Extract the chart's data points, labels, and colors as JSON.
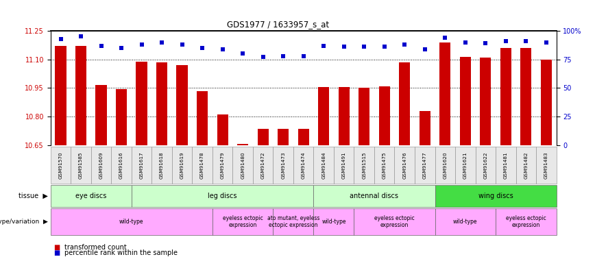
{
  "title": "GDS1977 / 1633957_s_at",
  "samples": [
    "GSM91570",
    "GSM91585",
    "GSM91609",
    "GSM91616",
    "GSM91617",
    "GSM91618",
    "GSM91619",
    "GSM91478",
    "GSM91479",
    "GSM91480",
    "GSM91472",
    "GSM91473",
    "GSM91474",
    "GSM91484",
    "GSM91491",
    "GSM91515",
    "GSM91475",
    "GSM91476",
    "GSM91477",
    "GSM91620",
    "GSM91621",
    "GSM91622",
    "GSM91481",
    "GSM91482",
    "GSM91483"
  ],
  "bar_values": [
    11.17,
    11.17,
    10.965,
    10.945,
    11.09,
    11.085,
    11.07,
    10.935,
    10.81,
    10.655,
    10.735,
    10.735,
    10.735,
    10.955,
    10.955,
    10.95,
    10.96,
    11.085,
    10.83,
    11.19,
    11.115,
    11.11,
    11.16,
    11.16,
    11.1
  ],
  "percentile_values": [
    93,
    95,
    87,
    85,
    88,
    90,
    88,
    85,
    84,
    80,
    77,
    78,
    78,
    87,
    86,
    86,
    86,
    88,
    84,
    94,
    90,
    89,
    91,
    91,
    90
  ],
  "bar_color": "#cc0000",
  "percentile_color": "#0000cc",
  "ylim_left": [
    10.65,
    11.25
  ],
  "ylim_right": [
    0,
    100
  ],
  "yticks_left": [
    10.65,
    10.8,
    10.95,
    11.1,
    11.25
  ],
  "yticks_right": [
    0,
    25,
    50,
    75,
    100
  ],
  "ytick_labels_right": [
    "0",
    "25",
    "50",
    "75",
    "100%"
  ],
  "hlines": [
    10.8,
    10.95,
    11.1
  ],
  "tissue_groups": [
    {
      "label": "eye discs",
      "start": 0,
      "end": 3,
      "color": "#ccffcc"
    },
    {
      "label": "leg discs",
      "start": 4,
      "end": 12,
      "color": "#ccffcc"
    },
    {
      "label": "antennal discs",
      "start": 13,
      "end": 18,
      "color": "#ccffcc"
    },
    {
      "label": "wing discs",
      "start": 19,
      "end": 24,
      "color": "#55ee55"
    }
  ],
  "genotype_groups": [
    {
      "label": "wild-type",
      "start": 0,
      "end": 7
    },
    {
      "label": "eyeless ectopic\nexpression",
      "start": 8,
      "end": 10
    },
    {
      "label": "ato mutant, eyeless\nectopic expression",
      "start": 11,
      "end": 12
    },
    {
      "label": "wild-type",
      "start": 13,
      "end": 14
    },
    {
      "label": "eyeless ectopic\nexpression",
      "start": 15,
      "end": 18
    },
    {
      "label": "wild-type",
      "start": 19,
      "end": 21
    },
    {
      "label": "eyeless ectopic\nexpression",
      "start": 22,
      "end": 24
    }
  ]
}
